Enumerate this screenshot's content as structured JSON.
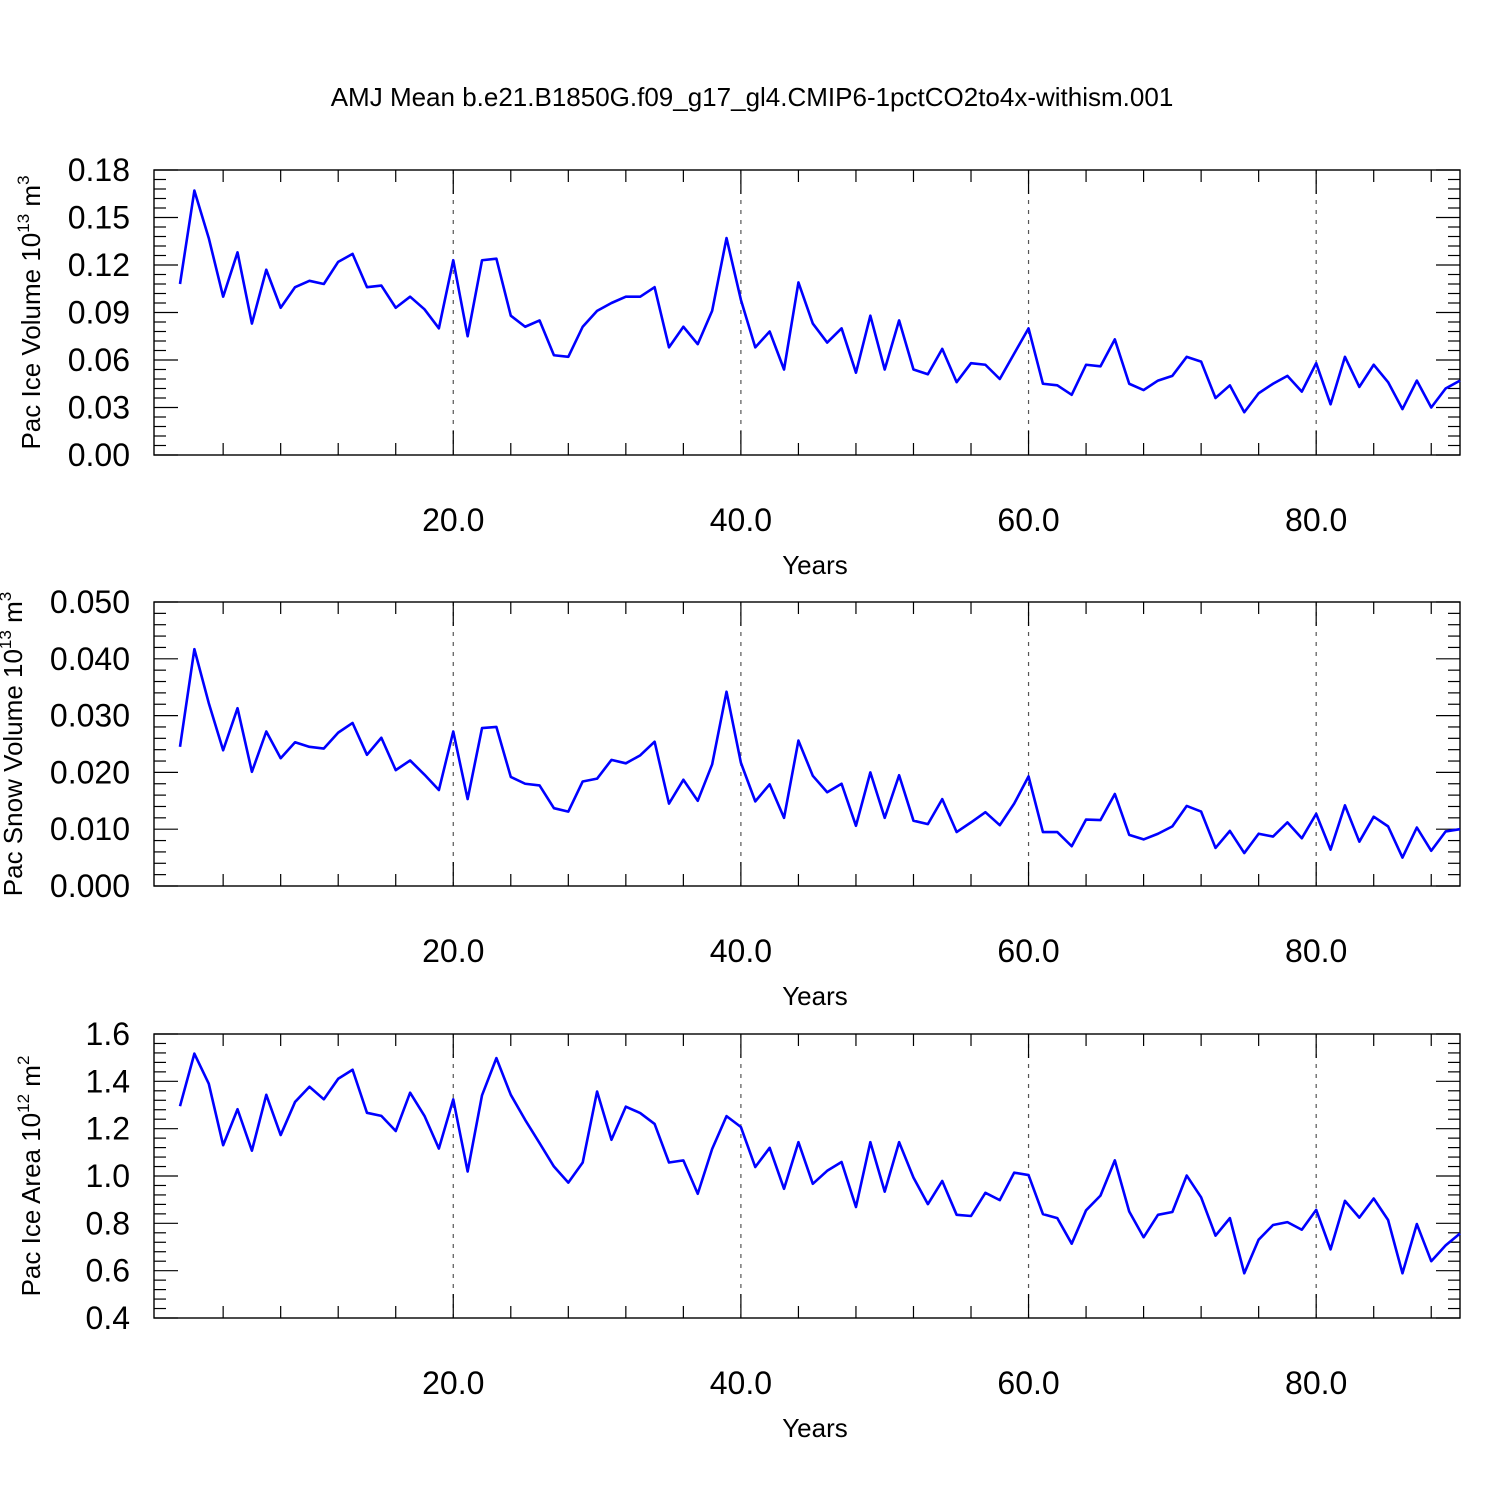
{
  "title": "AMJ Mean b.e21.B1850G.f09_g17_gl4.CMIP6-1pctCO2to4x-withism.001",
  "colors": {
    "line": "#0000ff",
    "axis": "#000000",
    "grid": "#555555"
  },
  "chart_data": [
    {
      "type": "line",
      "ylabel": {
        "main": "Pac Ice Volume 10",
        "sup": "13",
        "unit": " m",
        "unit_sup": "3"
      },
      "xlabel": "Years",
      "xlim": [
        1,
        90
      ],
      "ylim": [
        0,
        0.18
      ],
      "ytick_values": [
        0,
        0.03,
        0.06,
        0.09,
        0.12,
        0.15,
        0.18
      ],
      "ytick_labels": [
        "0.00",
        "0.03",
        "0.06",
        "0.09",
        "0.12",
        "0.15",
        "0.18"
      ],
      "ytick_minor_step": 0.006,
      "xtick_values": [
        20,
        40,
        60,
        80
      ],
      "xtick_labels": [
        "20.0",
        "40.0",
        "60.0",
        "80.0"
      ],
      "xtick_minor_step": 4,
      "grid_x": true,
      "x_start": 1,
      "values": [
        0.108,
        0.167,
        0.137,
        0.1,
        0.128,
        0.083,
        0.117,
        0.093,
        0.106,
        0.11,
        0.108,
        0.122,
        0.127,
        0.106,
        0.107,
        0.093,
        0.1,
        0.092,
        0.08,
        0.123,
        0.075,
        0.123,
        0.124,
        0.088,
        0.081,
        0.085,
        0.063,
        0.062,
        0.081,
        0.091,
        0.096,
        0.1,
        0.1,
        0.106,
        0.068,
        0.081,
        0.07,
        0.091,
        0.137,
        0.098,
        0.068,
        0.078,
        0.054,
        0.109,
        0.083,
        0.071,
        0.08,
        0.052,
        0.088,
        0.054,
        0.085,
        0.054,
        0.051,
        0.067,
        0.046,
        0.058,
        0.057,
        0.048,
        0.064,
        0.08,
        0.045,
        0.044,
        0.038,
        0.057,
        0.056,
        0.073,
        0.045,
        0.041,
        0.047,
        0.05,
        0.062,
        0.059,
        0.036,
        0.044,
        0.027,
        0.039,
        0.045,
        0.05,
        0.04,
        0.058,
        0.032,
        0.062,
        0.043,
        0.057,
        0.046,
        0.029,
        0.047,
        0.03,
        0.042,
        0.047
      ]
    },
    {
      "type": "line",
      "ylabel": {
        "main": "Pac Snow Volume 10",
        "sup": "13",
        "unit": " m",
        "unit_sup": "3"
      },
      "xlabel": "Years",
      "xlim": [
        1,
        90
      ],
      "ylim": [
        0,
        0.05
      ],
      "ytick_values": [
        0,
        0.01,
        0.02,
        0.03,
        0.04,
        0.05
      ],
      "ytick_labels": [
        "0.000",
        "0.010",
        "0.020",
        "0.030",
        "0.040",
        "0.050"
      ],
      "ytick_minor_step": 0.002,
      "xtick_values": [
        20,
        40,
        60,
        80
      ],
      "xtick_labels": [
        "20.0",
        "40.0",
        "60.0",
        "80.0"
      ],
      "xtick_minor_step": 4,
      "grid_x": true,
      "x_start": 1,
      "values": [
        0.0245,
        0.0417,
        0.0322,
        0.0239,
        0.0313,
        0.0201,
        0.0272,
        0.0225,
        0.0253,
        0.0245,
        0.0242,
        0.027,
        0.0287,
        0.0231,
        0.0261,
        0.0204,
        0.0221,
        0.0196,
        0.0169,
        0.0272,
        0.0153,
        0.0278,
        0.028,
        0.0192,
        0.018,
        0.0177,
        0.0137,
        0.0131,
        0.0184,
        0.0189,
        0.0222,
        0.0216,
        0.023,
        0.0254,
        0.0145,
        0.0187,
        0.015,
        0.0214,
        0.0342,
        0.0217,
        0.0149,
        0.0179,
        0.012,
        0.0256,
        0.0194,
        0.0165,
        0.018,
        0.0106,
        0.02,
        0.012,
        0.0195,
        0.0115,
        0.0109,
        0.0153,
        0.0095,
        0.0112,
        0.013,
        0.0107,
        0.0145,
        0.0193,
        0.0095,
        0.0095,
        0.007,
        0.0117,
        0.0116,
        0.0162,
        0.009,
        0.0082,
        0.0092,
        0.0105,
        0.0141,
        0.0131,
        0.0067,
        0.0097,
        0.0058,
        0.0092,
        0.0087,
        0.0112,
        0.0084,
        0.0127,
        0.0064,
        0.0142,
        0.0078,
        0.0122,
        0.0105,
        0.005,
        0.0103,
        0.0062,
        0.0096,
        0.01
      ]
    },
    {
      "type": "line",
      "ylabel": {
        "main": "Pac Ice Area 10",
        "sup": "12",
        "unit": " m",
        "unit_sup": "2"
      },
      "xlabel": "Years",
      "xlim": [
        1,
        90
      ],
      "ylim": [
        0.4,
        1.6
      ],
      "ytick_values": [
        0.4,
        0.6,
        0.8,
        1.0,
        1.2,
        1.4,
        1.6
      ],
      "ytick_labels": [
        "0.4",
        "0.6",
        "0.8",
        "1.0",
        "1.2",
        "1.4",
        "1.6"
      ],
      "ytick_minor_step": 0.04,
      "xtick_values": [
        20,
        40,
        60,
        80
      ],
      "xtick_labels": [
        "20.0",
        "40.0",
        "60.0",
        "80.0"
      ],
      "xtick_minor_step": 4,
      "grid_x": true,
      "x_start": 1,
      "values": [
        1.295,
        1.517,
        1.39,
        1.13,
        1.282,
        1.107,
        1.343,
        1.173,
        1.313,
        1.377,
        1.324,
        1.411,
        1.449,
        1.267,
        1.254,
        1.19,
        1.352,
        1.254,
        1.116,
        1.324,
        1.019,
        1.341,
        1.498,
        1.343,
        1.237,
        1.139,
        1.04,
        0.972,
        1.057,
        1.357,
        1.153,
        1.293,
        1.266,
        1.22,
        1.057,
        1.066,
        0.925,
        1.114,
        1.253,
        1.207,
        1.038,
        1.119,
        0.946,
        1.143,
        0.967,
        1.022,
        1.059,
        0.869,
        1.143,
        0.934,
        1.143,
        0.993,
        0.881,
        0.979,
        0.836,
        0.831,
        0.929,
        0.898,
        1.014,
        1.004,
        0.839,
        0.822,
        0.714,
        0.855,
        0.917,
        1.066,
        0.85,
        0.741,
        0.836,
        0.848,
        1.002,
        0.91,
        0.748,
        0.822,
        0.589,
        0.731,
        0.793,
        0.805,
        0.773,
        0.857,
        0.69,
        0.895,
        0.824,
        0.905,
        0.814,
        0.589,
        0.797,
        0.64,
        0.707,
        0.757
      ]
    }
  ]
}
